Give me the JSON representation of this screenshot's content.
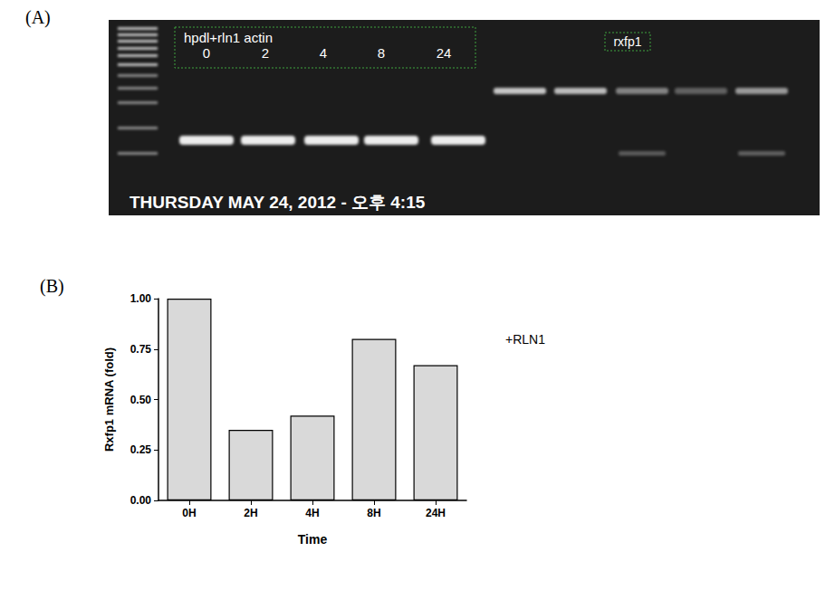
{
  "panel_labels": [
    "(A)",
    "(B)"
  ],
  "gel": {
    "header": "hpdl+rln1 actin",
    "lane_labels": [
      0,
      2,
      4,
      8,
      24
    ],
    "gene_label": "rxfp1",
    "timestamp": "THURSDAY MAY 24, 2012 - 오후 4:15"
  },
  "chart_data": {
    "type": "bar",
    "categories": [
      "0H",
      "2H",
      "4H",
      "8H",
      "24H"
    ],
    "values": [
      1.0,
      0.35,
      0.42,
      0.8,
      0.67
    ],
    "color": "#d9d9d9",
    "x_label": "Time",
    "y_label": "Rxfp1 mRNA (fold)",
    "annotations": [
      "+RLN1"
    ],
    "ylim": [
      0,
      1
    ],
    "yticks": [
      {
        "value": 0,
        "label": "0.00"
      },
      {
        "value": 0.25,
        "label": "0.25"
      },
      {
        "value": 0.5,
        "label": "0.50"
      },
      {
        "value": 0.75,
        "label": "0.75"
      },
      {
        "value": 1,
        "label": "1.00"
      }
    ],
    "grid": false
  }
}
